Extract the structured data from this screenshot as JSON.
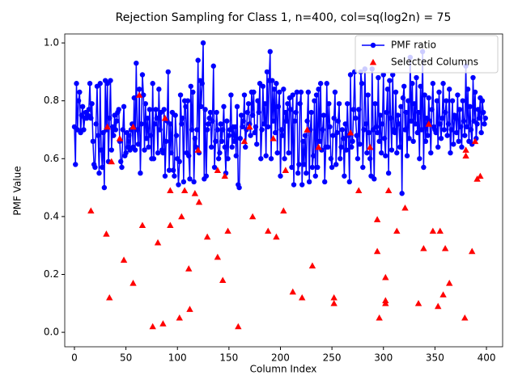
{
  "chart_data": {
    "type": "line",
    "title": "Rejection Sampling for Class 1, n=400, col=sq(log2n) = 75",
    "xlabel": "Column Index",
    "ylabel": "PMF Value",
    "xlim": [
      -9.4,
      415.7
    ],
    "ylim": [
      -0.05,
      1.031
    ],
    "xticks": [
      0,
      50,
      100,
      150,
      200,
      250,
      300,
      350,
      400
    ],
    "yticks": [
      {
        "value": 0,
        "label": "0.0"
      },
      0.2,
      0.4,
      0.6,
      0.8,
      {
        "value": 1,
        "label": "1.0"
      }
    ],
    "grid": false,
    "legend": "upper right",
    "series": [
      {
        "name": "PMF ratio",
        "type": "line",
        "color": "#0000ff",
        "marker": "o",
        "x": [
          0,
          1,
          2,
          3,
          4,
          5,
          6,
          7,
          8,
          9,
          10,
          11,
          12,
          13,
          14,
          15,
          16,
          17,
          18,
          19,
          20,
          21,
          22,
          23,
          24,
          25,
          26,
          27,
          28,
          29,
          30,
          31,
          32,
          33,
          34,
          35,
          36,
          37,
          38,
          39,
          40,
          41,
          42,
          43,
          44,
          45,
          46,
          47,
          48,
          49,
          50,
          51,
          52,
          53,
          54,
          55,
          56,
          57,
          58,
          59,
          60,
          61,
          62,
          63,
          64,
          65,
          66,
          67,
          68,
          69,
          70,
          71,
          72,
          73,
          74,
          75,
          76,
          77,
          78,
          79,
          80,
          81,
          82,
          83,
          84,
          85,
          86,
          87,
          88,
          89,
          90,
          91,
          92,
          93,
          94,
          95,
          96,
          97,
          98,
          99,
          100,
          101,
          102,
          103,
          104,
          105,
          106,
          107,
          108,
          109,
          110,
          111,
          112,
          113,
          114,
          115,
          116,
          117,
          118,
          119,
          120,
          121,
          122,
          123,
          124,
          125,
          126,
          127,
          128,
          129,
          130,
          131,
          132,
          133,
          134,
          135,
          136,
          137,
          138,
          139,
          140,
          141,
          142,
          143,
          144,
          145,
          146,
          147,
          148,
          149,
          150,
          151,
          152,
          153,
          154,
          155,
          156,
          157,
          158,
          159,
          160,
          161,
          162,
          163,
          164,
          165,
          166,
          167,
          168,
          169,
          170,
          171,
          172,
          173,
          174,
          175,
          176,
          177,
          178,
          179,
          180,
          181,
          182,
          183,
          184,
          185,
          186,
          187,
          188,
          189,
          190,
          191,
          192,
          193,
          194,
          195,
          196,
          197,
          198,
          199,
          200,
          201,
          202,
          203,
          204,
          205,
          206,
          207,
          208,
          209,
          210,
          211,
          212,
          213,
          214,
          215,
          216,
          217,
          218,
          219,
          220,
          221,
          222,
          223,
          224,
          225,
          226,
          227,
          228,
          229,
          230,
          231,
          232,
          233,
          234,
          235,
          236,
          237,
          238,
          239,
          240,
          241,
          242,
          243,
          244,
          245,
          246,
          247,
          248,
          249,
          250,
          251,
          252,
          253,
          254,
          255,
          256,
          257,
          258,
          259,
          260,
          261,
          262,
          263,
          264,
          265,
          266,
          267,
          268,
          269,
          270,
          271,
          272,
          273,
          274,
          275,
          276,
          277,
          278,
          279,
          280,
          281,
          282,
          283,
          284,
          285,
          286,
          287,
          288,
          289,
          290,
          291,
          292,
          293,
          294,
          295,
          296,
          297,
          298,
          299,
          300,
          301,
          302,
          303,
          304,
          305,
          306,
          307,
          308,
          309,
          310,
          311,
          312,
          313,
          314,
          315,
          316,
          317,
          318,
          319,
          320,
          321,
          322,
          323,
          324,
          325,
          326,
          327,
          328,
          329,
          330,
          331,
          332,
          333,
          334,
          335,
          336,
          337,
          338,
          339,
          340,
          341,
          342,
          343,
          344,
          345,
          346,
          347,
          348,
          349,
          350,
          351,
          352,
          353,
          354,
          355,
          356,
          357,
          358,
          359,
          360,
          361,
          362,
          363,
          364,
          365,
          366,
          367,
          368,
          369,
          370,
          371,
          372,
          373,
          374,
          375,
          376,
          377,
          378,
          379,
          380,
          381,
          382,
          383,
          384,
          385,
          386,
          387,
          388,
          389,
          390,
          391,
          392,
          393,
          394,
          395,
          396,
          397,
          398,
          399
        ],
        "values": [
          0.71,
          0.58,
          0.86,
          0.7,
          0.8,
          0.83,
          0.69,
          0.75,
          0.78,
          0.7,
          0.74,
          0.76,
          0.74,
          0.75,
          0.77,
          0.86,
          0.74,
          0.79,
          0.66,
          0.58,
          0.57,
          0.72,
          0.85,
          0.68,
          0.55,
          0.86,
          0.63,
          0.57,
          0.69,
          0.5,
          0.87,
          0.7,
          0.86,
          0.59,
          0.74,
          0.87,
          0.63,
          0.71,
          0.68,
          0.75,
          0.7,
          0.73,
          0.76,
          0.77,
          0.66,
          0.59,
          0.57,
          0.7,
          0.78,
          0.61,
          0.62,
          0.69,
          0.64,
          0.68,
          0.63,
          0.7,
          0.72,
          0.64,
          0.81,
          0.63,
          0.93,
          0.7,
          0.65,
          0.84,
          0.55,
          0.72,
          0.89,
          0.82,
          0.63,
          0.79,
          0.67,
          0.74,
          0.64,
          0.77,
          0.68,
          0.6,
          0.86,
          0.6,
          0.72,
          0.77,
          0.74,
          0.62,
          0.84,
          0.7,
          0.76,
          0.63,
          0.62,
          0.77,
          0.54,
          0.66,
          0.73,
          0.9,
          0.56,
          0.72,
          0.62,
          0.76,
          0.56,
          0.54,
          0.75,
          0.68,
          0.6,
          0.51,
          0.59,
          0.82,
          0.72,
          0.74,
          0.52,
          0.8,
          0.78,
          0.62,
          0.8,
          0.61,
          0.53,
          0.85,
          0.7,
          0.83,
          0.52,
          0.67,
          0.64,
          0.7,
          0.94,
          0.62,
          0.87,
          0.78,
          0.86,
          1.0,
          0.53,
          0.77,
          0.54,
          0.7,
          0.72,
          0.74,
          0.76,
          0.64,
          0.73,
          0.92,
          0.57,
          0.66,
          0.76,
          0.7,
          0.6,
          0.62,
          0.72,
          0.66,
          0.7,
          0.78,
          0.64,
          0.55,
          0.73,
          0.6,
          0.68,
          0.7,
          0.82,
          0.64,
          0.71,
          0.66,
          0.71,
          0.61,
          0.78,
          0.51,
          0.5,
          0.67,
          0.75,
          0.71,
          0.73,
          0.82,
          0.64,
          0.7,
          0.76,
          0.79,
          0.72,
          0.68,
          0.83,
          0.75,
          0.83,
          0.69,
          0.71,
          0.65,
          0.8,
          0.76,
          0.86,
          0.6,
          0.7,
          0.85,
          0.72,
          0.79,
          0.61,
          0.9,
          0.71,
          0.87,
          0.97,
          0.6,
          0.87,
          0.73,
          0.84,
          0.69,
          0.86,
          0.62,
          0.78,
          0.83,
          0.54,
          0.7,
          0.68,
          0.84,
          0.6,
          0.76,
          0.73,
          0.79,
          0.62,
          0.81,
          0.77,
          0.57,
          0.82,
          0.51,
          0.73,
          0.76,
          0.83,
          0.55,
          0.58,
          0.79,
          0.83,
          0.51,
          0.66,
          0.58,
          0.68,
          0.55,
          0.73,
          0.83,
          0.52,
          0.7,
          0.76,
          0.57,
          0.61,
          0.8,
          0.54,
          0.82,
          0.57,
          0.84,
          0.66,
          0.86,
          0.63,
          0.7,
          0.75,
          0.52,
          0.64,
          0.86,
          0.64,
          0.79,
          0.71,
          0.6,
          0.57,
          0.68,
          0.74,
          0.83,
          0.58,
          0.69,
          0.73,
          0.79,
          0.6,
          0.64,
          0.7,
          0.67,
          0.54,
          0.72,
          0.63,
          0.79,
          0.68,
          0.52,
          0.89,
          0.64,
          0.66,
          0.77,
          0.9,
          0.74,
          0.68,
          0.6,
          0.77,
          0.65,
          0.9,
          0.86,
          0.57,
          0.7,
          0.91,
          0.72,
          0.62,
          0.82,
          0.69,
          0.6,
          0.54,
          0.91,
          0.7,
          0.53,
          0.79,
          0.71,
          0.69,
          0.88,
          0.66,
          0.75,
          0.62,
          0.72,
          0.89,
          0.67,
          0.61,
          0.76,
          0.84,
          0.55,
          0.87,
          0.74,
          0.63,
          0.89,
          0.7,
          0.69,
          0.83,
          0.62,
          0.75,
          0.72,
          0.64,
          0.78,
          0.48,
          0.81,
          0.85,
          0.7,
          0.76,
          0.61,
          0.8,
          0.67,
          0.95,
          0.73,
          0.86,
          0.66,
          0.79,
          0.72,
          0.88,
          0.69,
          0.76,
          0.6,
          0.85,
          0.7,
          0.97,
          0.57,
          0.82,
          0.66,
          0.74,
          0.68,
          0.81,
          0.73,
          0.62,
          0.77,
          0.86,
          0.71,
          0.7,
          0.69,
          0.8,
          0.64,
          0.83,
          0.72,
          0.67,
          0.74,
          0.86,
          0.7,
          0.76,
          0.8,
          0.68,
          0.72,
          0.84,
          0.62,
          0.7,
          0.8,
          0.65,
          0.75,
          0.74,
          0.69,
          0.82,
          0.66,
          0.77,
          0.71,
          0.64,
          0.8,
          0.73,
          0.68,
          0.92,
          0.71,
          0.84,
          0.66,
          0.78,
          0.7,
          0.65,
          0.88,
          0.73,
          0.83,
          0.67,
          0.72,
          0.77,
          0.74,
          0.81,
          0.69,
          0.8,
          0.76,
          0.72,
          0.74
        ]
      },
      {
        "name": "Selected Columns",
        "type": "scatter",
        "color": "#ff0000",
        "marker": "^",
        "x": [
          16,
          31,
          34,
          36,
          32,
          44,
          48,
          57,
          63,
          66,
          76,
          81,
          86,
          93,
          93,
          102,
          104,
          107,
          111,
          112,
          117,
          120,
          121,
          129,
          139,
          139,
          144,
          146,
          149,
          159,
          165,
          173,
          188,
          193,
          196,
          203,
          205,
          212,
          221,
          231,
          237,
          252,
          252,
          276,
          287,
          294,
          294,
          296,
          302,
          302,
          302,
          305,
          313,
          321,
          334,
          339,
          348,
          353,
          355,
          358,
          360,
          364,
          379,
          380,
          380,
          386,
          391,
          394,
          57,
          170,
          226,
          268,
          344,
          389,
          88
        ],
        "values": [
          0.42,
          0.34,
          0.12,
          0.59,
          0.71,
          0.67,
          0.25,
          0.17,
          0.82,
          0.37,
          0.02,
          0.31,
          0.03,
          0.49,
          0.37,
          0.05,
          0.4,
          0.49,
          0.22,
          0.08,
          0.48,
          0.63,
          0.45,
          0.33,
          0.26,
          0.56,
          0.18,
          0.54,
          0.35,
          0.02,
          0.66,
          0.4,
          0.35,
          0.67,
          0.33,
          0.42,
          0.56,
          0.14,
          0.12,
          0.23,
          0.64,
          0.12,
          0.1,
          0.49,
          0.64,
          0.39,
          0.28,
          0.05,
          0.19,
          0.11,
          0.1,
          0.49,
          0.35,
          0.43,
          0.1,
          0.29,
          0.35,
          0.09,
          0.35,
          0.13,
          0.29,
          0.17,
          0.05,
          0.61,
          0.63,
          0.28,
          0.53,
          0.54,
          0.71,
          0.71,
          0.7,
          0.69,
          0.72,
          0.66,
          0.74
        ]
      }
    ]
  }
}
